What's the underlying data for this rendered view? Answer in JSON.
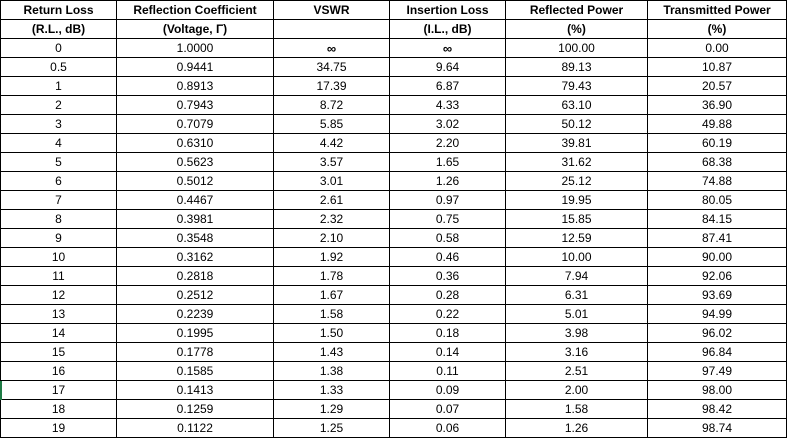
{
  "header_rows": [
    [
      "Return Loss",
      "Reflection Coefficient",
      "VSWR",
      "Insertion Loss",
      "Reflected Power",
      "Transmitted Power"
    ],
    [
      "(R.L., dB)",
      "(Voltage, Γ)",
      "",
      "(I.L., dB)",
      "(%)",
      "(%)"
    ]
  ],
  "rows": [
    [
      "0",
      "1.0000",
      "∞",
      "∞",
      "100.00",
      "0.00"
    ],
    [
      "0.5",
      "0.9441",
      "34.75",
      "9.64",
      "89.13",
      "10.87"
    ],
    [
      "1",
      "0.8913",
      "17.39",
      "6.87",
      "79.43",
      "20.57"
    ],
    [
      "2",
      "0.7943",
      "8.72",
      "4.33",
      "63.10",
      "36.90"
    ],
    [
      "3",
      "0.7079",
      "5.85",
      "3.02",
      "50.12",
      "49.88"
    ],
    [
      "4",
      "0.6310",
      "4.42",
      "2.20",
      "39.81",
      "60.19"
    ],
    [
      "5",
      "0.5623",
      "3.57",
      "1.65",
      "31.62",
      "68.38"
    ],
    [
      "6",
      "0.5012",
      "3.01",
      "1.26",
      "25.12",
      "74.88"
    ],
    [
      "7",
      "0.4467",
      "2.61",
      "0.97",
      "19.95",
      "80.05"
    ],
    [
      "8",
      "0.3981",
      "2.32",
      "0.75",
      "15.85",
      "84.15"
    ],
    [
      "9",
      "0.3548",
      "2.10",
      "0.58",
      "12.59",
      "87.41"
    ],
    [
      "10",
      "0.3162",
      "1.92",
      "0.46",
      "10.00",
      "90.00"
    ],
    [
      "11",
      "0.2818",
      "1.78",
      "0.36",
      "7.94",
      "92.06"
    ],
    [
      "12",
      "0.2512",
      "1.67",
      "0.28",
      "6.31",
      "93.69"
    ],
    [
      "13",
      "0.2239",
      "1.58",
      "0.22",
      "5.01",
      "94.99"
    ],
    [
      "14",
      "0.1995",
      "1.50",
      "0.18",
      "3.98",
      "96.02"
    ],
    [
      "15",
      "0.1778",
      "1.43",
      "0.14",
      "3.16",
      "96.84"
    ],
    [
      "16",
      "0.1585",
      "1.38",
      "0.11",
      "2.51",
      "97.49"
    ],
    [
      "17",
      "0.1413",
      "1.33",
      "0.09",
      "2.00",
      "98.00"
    ],
    [
      "18",
      "0.1259",
      "1.29",
      "0.07",
      "1.58",
      "98.42"
    ],
    [
      "19",
      "0.1122",
      "1.25",
      "0.06",
      "1.26",
      "98.74"
    ]
  ],
  "colors": {
    "grid_line": "#000000",
    "text": "#000000",
    "background": "#ffffff",
    "active_cell_marker": "#1e7b45"
  }
}
